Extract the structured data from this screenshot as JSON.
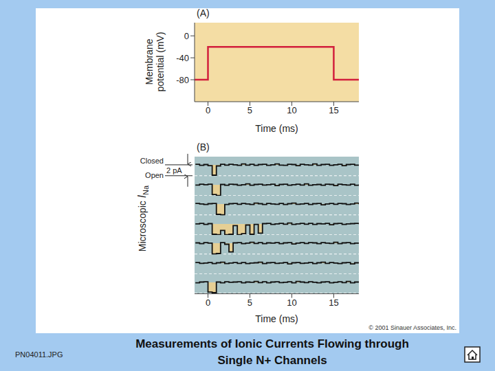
{
  "title": "Measurements of Ionic Currents Flowing through\nSingle N+ Channels",
  "file_label": "PN04011.JPG",
  "credit": "© 2001 Sinauer Associates, Inc.",
  "chart_data": [
    {
      "type": "line",
      "label": "(A)",
      "x_label": "Time (ms)",
      "y_label": "Membrane\npotential (mV)",
      "x": [
        -1.6,
        0,
        0,
        15,
        15,
        18
      ],
      "values": [
        -80,
        -80,
        -20,
        -20,
        -80,
        -80
      ],
      "color": "#d21f3c",
      "xlim": [
        -1.6,
        18
      ],
      "ylim": [
        -120,
        24
      ],
      "xticks": [
        0,
        5,
        10,
        15
      ],
      "yticks": [
        0,
        -40,
        -80
      ],
      "grid": false
    },
    {
      "type": "line",
      "label": "(B)",
      "x_label": "Time (ms)",
      "y_label": {
        "text": "Microscopic",
        "symbol": "I",
        "subscript": "Na"
      },
      "levels": {
        "closed": {
          "value": 0,
          "label": "Closed"
        },
        "open": {
          "value": -2,
          "label": "Open"
        }
      },
      "scale_bar": {
        "value": 2,
        "label": "2 pA"
      },
      "line_style": "step",
      "tick_labels": "x",
      "grid": false,
      "xlim": [
        -1.6,
        18
      ],
      "ylim": [
        -2.1,
        1.5
      ],
      "xticks": [
        0,
        5,
        10,
        15
      ],
      "x": [
        -1.5,
        -1,
        -0.5,
        0,
        0.5,
        1,
        1.5,
        2,
        2.5,
        3,
        3.5,
        4,
        4.5,
        5,
        5.5,
        6,
        6.5,
        7,
        7.5,
        8,
        8.5,
        9,
        9.5,
        10,
        10.5,
        11,
        11.5,
        12,
        12.5,
        13,
        13.5,
        14,
        14.5,
        15,
        15.5,
        16,
        16.5,
        17,
        17.5,
        18
      ],
      "series": [
        {
          "color": "#111111",
          "values": [
            0.1,
            -0.1,
            0.05,
            -0.15,
            -1.9,
            -0.2,
            0.1,
            -0.05,
            0.1,
            0,
            -0.1,
            0.15,
            -0.05,
            0.1,
            -0.1,
            0.05,
            0.1,
            -0.1,
            0,
            0.15,
            -0.05,
            -0.1,
            0.1,
            0.05,
            -0.15,
            0.1,
            0,
            -0.05,
            0.15,
            -0.1,
            0.05,
            0.1,
            -0.1,
            0,
            0.1,
            -0.15,
            0.05,
            0.1,
            -0.05,
            0
          ]
        },
        {
          "color": "#111111",
          "values": [
            -0.05,
            0.1,
            0,
            0.1,
            -1.8,
            -2,
            0.05,
            -0.1,
            0.1,
            0.05,
            -0.1,
            0,
            0.15,
            -0.1,
            0.05,
            0.1,
            -0.05,
            0,
            0.1,
            -0.15,
            0.05,
            0.1,
            -0.1,
            0,
            0.1,
            -0.05,
            0.15,
            -0.1,
            0,
            0.05,
            -0.1,
            0.1,
            0.05,
            -0.15,
            0.1,
            0,
            -0.05,
            0.1,
            -0.1,
            0.05
          ]
        },
        {
          "color": "#111111",
          "values": [
            0.1,
            0,
            -0.1,
            0.05,
            0.1,
            -1.9,
            -2,
            -0.1,
            0.05,
            0.1,
            -0.05,
            0.1,
            0,
            -0.1,
            0.15,
            0.05,
            -0.1,
            0.1,
            0,
            -0.05,
            0.1,
            -0.1,
            0.05,
            0.15,
            -0.05,
            0,
            0.1,
            -0.1,
            0.05,
            0.1,
            -0.15,
            0,
            0.1,
            -0.05,
            0.1,
            0.05,
            -0.1,
            0,
            0.15,
            -0.05
          ]
        },
        {
          "color": "#111111",
          "values": [
            0,
            0.1,
            -0.1,
            0.05,
            -1.9,
            -2,
            -1.2,
            -2,
            -1.9,
            -0.3,
            -2,
            -1.8,
            -0.2,
            -1.9,
            -0.1,
            -1.7,
            0.05,
            0.1,
            -0.1,
            0,
            0.1,
            -0.05,
            0.15,
            -0.1,
            0,
            0.1,
            -0.05,
            0.1,
            -0.1,
            0.05,
            0,
            0.1,
            -0.15,
            0.05,
            0.1,
            -0.1,
            0,
            0.05,
            0.1,
            -0.05
          ]
        },
        {
          "color": "#111111",
          "values": [
            0.05,
            -0.1,
            0.1,
            0,
            -2,
            -1.9,
            0.1,
            -0.2,
            -1.6,
            0.05,
            0.1,
            -0.1,
            0,
            0.15,
            -0.05,
            0.1,
            -0.1,
            0.05,
            0,
            0.1,
            -0.1,
            0.05,
            0.1,
            -0.15,
            0,
            0.1,
            -0.05,
            0.1,
            0.05,
            -0.1,
            0.1,
            0,
            -0.05,
            0.15,
            -0.1,
            0.05,
            0.1,
            -0.1,
            0,
            0.05
          ]
        },
        {
          "color": "#111111",
          "values": [
            0.1,
            -0.05,
            0,
            0.1,
            -0.1,
            0.05,
            0.15,
            -0.1,
            0,
            0.1,
            -0.05,
            0.1,
            -0.1,
            0,
            0.05,
            0.15,
            -0.1,
            0.05,
            0.1,
            -0.05,
            0,
            0.1,
            -0.15,
            0.05,
            0.1,
            -0.05,
            0,
            0.1,
            -0.1,
            0.05,
            0.15,
            -0.05,
            0.1,
            0,
            -0.1,
            0.05,
            0.1,
            -0.15,
            0.05,
            0
          ]
        },
        {
          "color": "#111111",
          "values": [
            -0.1,
            0.05,
            0.1,
            -1.8,
            -1.9,
            0.05,
            -0.1,
            0.1,
            0,
            0.05,
            0.1,
            -0.1,
            0.05,
            0,
            0.15,
            -0.05,
            0.1,
            -0.1,
            0.05,
            0.1,
            -0.05,
            0,
            0.1,
            -0.1,
            0.15,
            0.05,
            -0.05,
            0.1,
            0,
            -0.1,
            0.05,
            0.1,
            -0.1,
            0,
            0.1,
            -0.05,
            0.15,
            -0.1,
            0.05,
            0.1
          ]
        }
      ]
    }
  ]
}
